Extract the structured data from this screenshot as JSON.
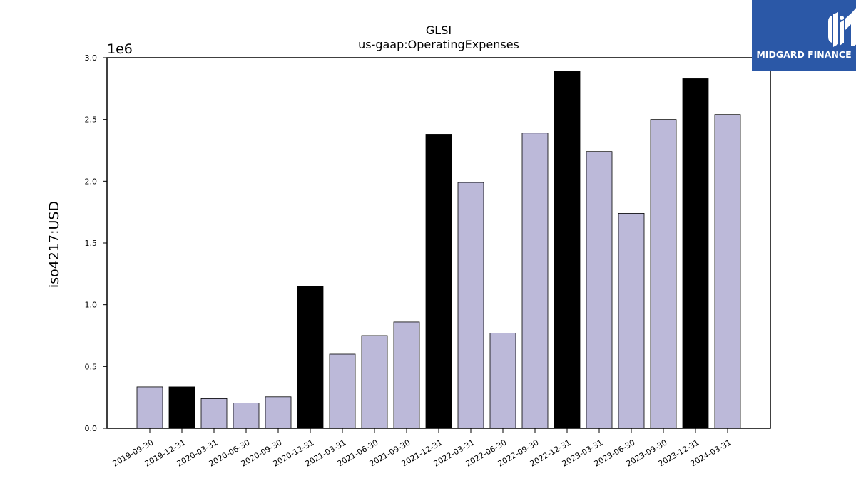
{
  "chart_data": {
    "type": "bar",
    "title": "GLSI",
    "subtitle": "us-gaap:OperatingExpenses",
    "ylabel": "iso4217:USD",
    "xlabel": "",
    "y_offset_label": "1e6",
    "ylim": [
      0,
      3000000
    ],
    "y_ticks": [
      "0.0",
      "0.5",
      "1.0",
      "1.5",
      "2.0",
      "2.5",
      "3.0"
    ],
    "categories": [
      "2019-09-30",
      "2019-12-31",
      "2020-03-31",
      "2020-06-30",
      "2020-09-30",
      "2020-12-31",
      "2021-03-31",
      "2021-06-30",
      "2021-09-30",
      "2021-12-31",
      "2022-03-31",
      "2022-06-30",
      "2022-09-30",
      "2022-12-31",
      "2023-03-31",
      "2023-06-30",
      "2023-09-30",
      "2023-12-31",
      "2024-03-31"
    ],
    "values": [
      335000,
      335000,
      240000,
      205000,
      255000,
      1150000,
      600000,
      750000,
      860000,
      2380000,
      1990000,
      770000,
      2390000,
      2890000,
      2240000,
      1740000,
      2500000,
      2830000,
      2540000
    ],
    "bar_colors": [
      "#bcb9d9",
      "#000000",
      "#bcb9d9",
      "#bcb9d9",
      "#bcb9d9",
      "#000000",
      "#bcb9d9",
      "#bcb9d9",
      "#bcb9d9",
      "#000000",
      "#bcb9d9",
      "#bcb9d9",
      "#bcb9d9",
      "#000000",
      "#bcb9d9",
      "#bcb9d9",
      "#bcb9d9",
      "#000000",
      "#bcb9d9"
    ],
    "grid": false
  },
  "logo": {
    "text": "MIDGARD FINANCE",
    "background": "#2b58a7"
  }
}
